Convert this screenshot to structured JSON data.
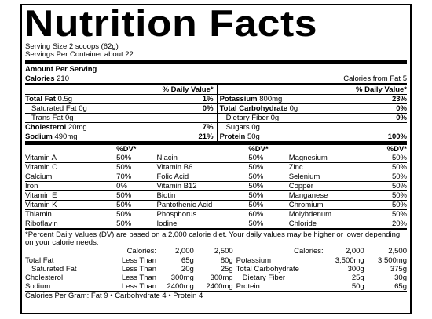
{
  "title": "Nutrition Facts",
  "serving_size": "Serving Size 2 scoops (62g)",
  "servings_per_container": "Servings Per Container about 22",
  "amount_per_serving": "Amount Per Serving",
  "calories_label": "Calories",
  "calories_value": "210",
  "calories_from_fat": "Calories from Fat 5",
  "dv_header": "% Daily Value*",
  "left_nutrients": [
    {
      "name": "Total Fat",
      "amount": "0.5g",
      "dv": "1%",
      "bold": true
    },
    {
      "name": "Saturated Fat",
      "amount": "0g",
      "dv": "0%",
      "bold": false
    },
    {
      "name": "Trans Fat",
      "amount": "0g",
      "dv": "",
      "bold": false
    },
    {
      "name": "Cholesterol",
      "amount": "20mg",
      "dv": "7%",
      "bold": true
    },
    {
      "name": "Sodium",
      "amount": "490mg",
      "dv": "21%",
      "bold": true
    }
  ],
  "right_nutrients": [
    {
      "name": "Potassium",
      "amount": "800mg",
      "dv": "23%",
      "bold": true
    },
    {
      "name": "Total Carbohydrate",
      "amount": "0g",
      "dv": "0%",
      "bold": true
    },
    {
      "name": "Dietary Fiber",
      "amount": "0g",
      "dv": "0%",
      "bold": false
    },
    {
      "name": "Sugars",
      "amount": "0g",
      "dv": "",
      "bold": false
    },
    {
      "name": "Protein",
      "amount": "50g",
      "dv": "100%",
      "bold": true
    }
  ],
  "vit_header": "%DV*",
  "vitamins": [
    [
      "Vitamin A",
      "50%",
      "Niacin",
      "50%",
      "Magnesium",
      "50%"
    ],
    [
      "Vitamin C",
      "50%",
      "Vitamin B6",
      "50%",
      "Zinc",
      "50%"
    ],
    [
      "Calcium",
      "70%",
      "Folic Acid",
      "50%",
      "Selenium",
      "50%"
    ],
    [
      "Iron",
      "0%",
      "Vitamin B12",
      "50%",
      "Copper",
      "50%"
    ],
    [
      "Vitamin E",
      "50%",
      "Biotin",
      "50%",
      "Manganese",
      "50%"
    ],
    [
      "Vitamin K",
      "50%",
      "Pantothenic Acid",
      "50%",
      "Chromium",
      "50%"
    ],
    [
      "Thiamin",
      "50%",
      "Phosphorus",
      "60%",
      "Molybdenum",
      "50%"
    ],
    [
      "Riboflavin",
      "50%",
      "Iodine",
      "50%",
      "Chloride",
      "20%"
    ]
  ],
  "footnote": "*Percent Daily Values (DV) are based on a 2,000 calorie diet. Your daily values may be higher or lower depending on your calorie needs:",
  "foot_cal_label": "Calories:",
  "foot_cal_a": "2,000",
  "foot_cal_b": "2,500",
  "foot_left": [
    [
      "Total Fat",
      "Less Than",
      "65g",
      "80g"
    ],
    [
      "Saturated Fat",
      "Less Than",
      "20g",
      "25g"
    ],
    [
      "Cholesterol",
      "Less Than",
      "300mg",
      "300mg"
    ],
    [
      "Sodium",
      "Less Than",
      "2400mg",
      "2400mg"
    ]
  ],
  "foot_right": [
    [
      "Potassium",
      "3,500mg",
      "3,500mg"
    ],
    [
      "Total Carbohydrate",
      "300g",
      "375g"
    ],
    [
      "Dietary Fiber",
      "25g",
      "30g"
    ],
    [
      "Protein",
      "50g",
      "65g"
    ]
  ],
  "cal_per_gram": "Calories Per Gram: Fat 9 • Carbohydrate 4 • Protein 4"
}
